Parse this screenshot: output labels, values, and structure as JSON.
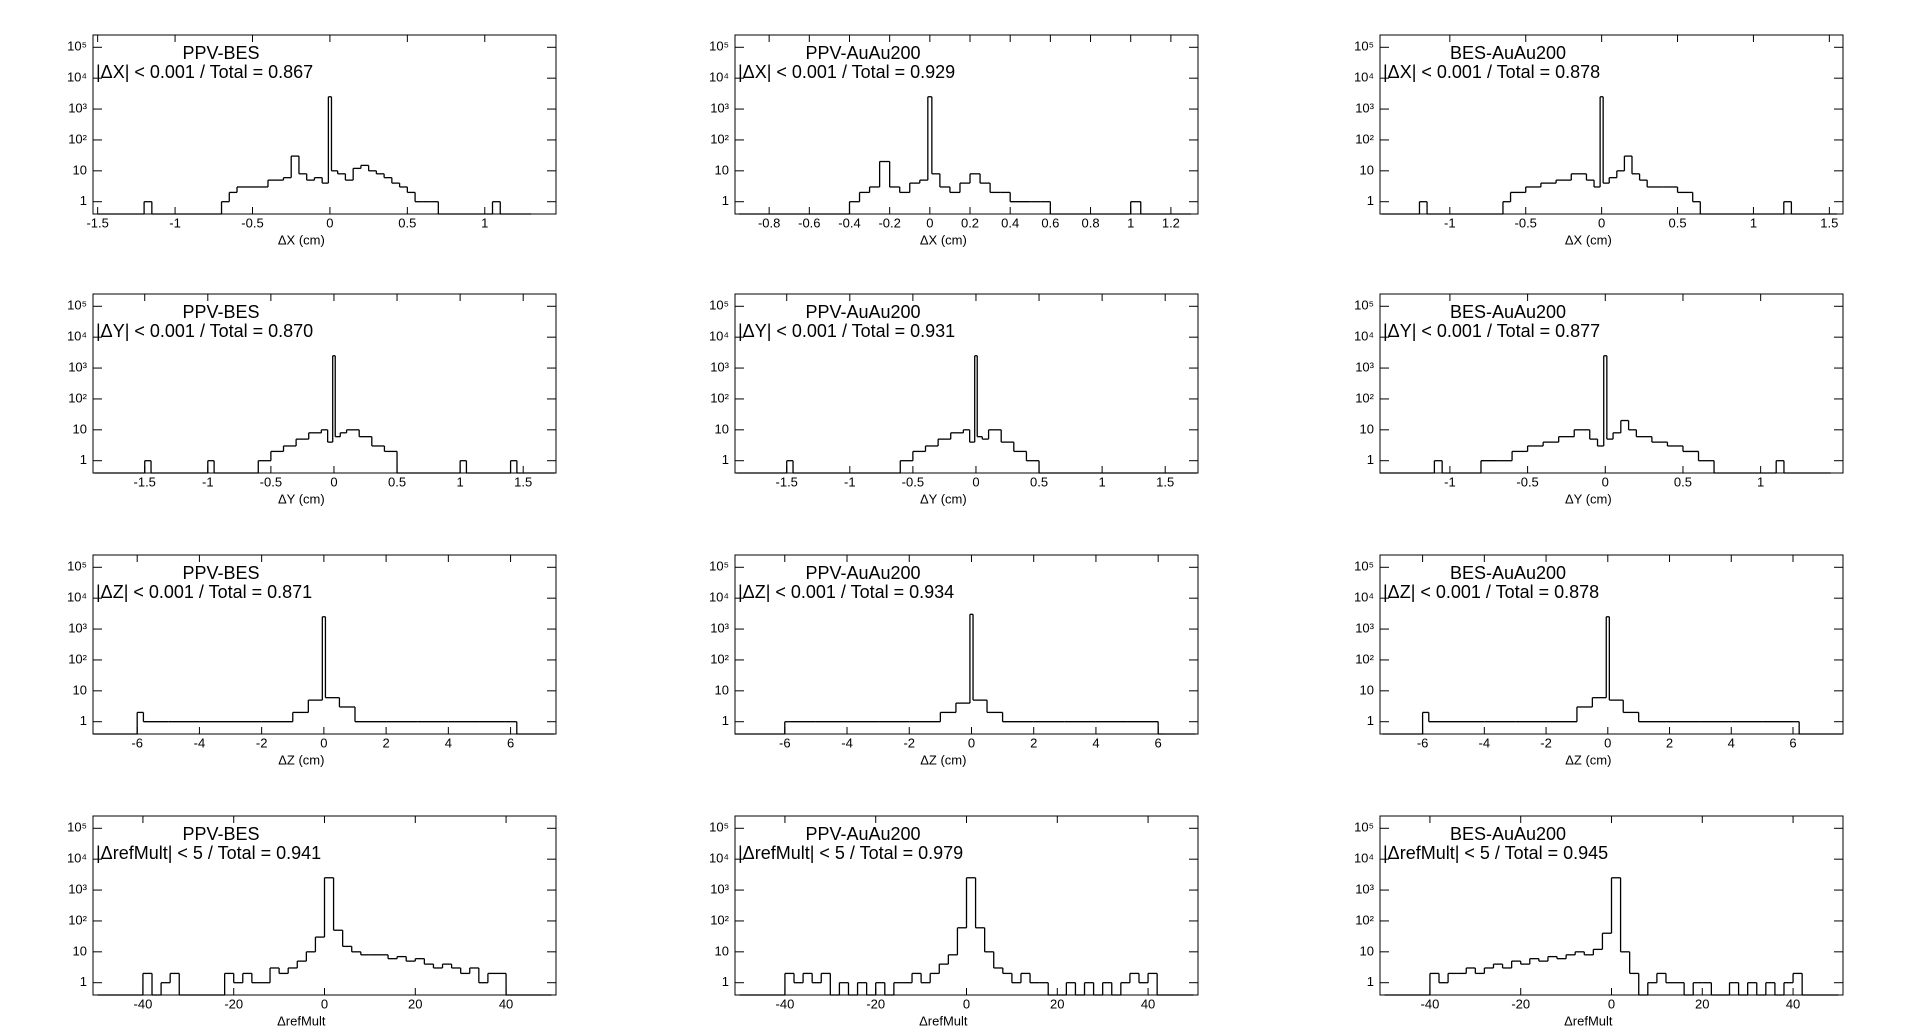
{
  "chart_data": [
    {
      "type": "histogram",
      "title": "PPV-BES",
      "annotation": "|ΔX| < 0.001 / Total = 0.867",
      "xlabel": "ΔX (cm)",
      "xlim": [
        -1.53,
        1.46
      ],
      "xticks": [
        -1.5,
        -1,
        -0.5,
        0,
        0.5,
        1
      ],
      "ylim": [
        0.4,
        250000
      ],
      "yticks": [
        1,
        10,
        {
          "value": 100,
          "label": "10²"
        },
        {
          "value": 1000,
          "label": "10³"
        },
        {
          "value": 10000,
          "label": "10⁴"
        },
        {
          "value": 100000,
          "label": "10⁵"
        }
      ],
      "log_y": true,
      "color": "#000000",
      "bins": [
        -1.5,
        -1.2,
        -1.15,
        -0.7,
        -0.65,
        -0.6,
        -0.5,
        -0.4,
        -0.3,
        -0.25,
        -0.2,
        -0.15,
        -0.1,
        -0.05,
        -0.01,
        0.01,
        0.05,
        0.1,
        0.15,
        0.2,
        0.25,
        0.3,
        0.35,
        0.4,
        0.45,
        0.5,
        0.55,
        0.6,
        0.65,
        0.7,
        1.05,
        1.1,
        1.3
      ],
      "counts": [
        0,
        1,
        0,
        1,
        2,
        3,
        3,
        5,
        6,
        30,
        8,
        5,
        6,
        4,
        2500,
        10,
        8,
        5,
        12,
        15,
        10,
        8,
        6,
        4,
        3,
        2,
        1,
        1,
        1,
        0,
        1,
        0
      ]
    },
    {
      "type": "histogram",
      "title": "PPV-AuAu200",
      "annotation": "|ΔX| < 0.001 / Total = 0.929",
      "xlabel": "ΔX (cm)",
      "xlim": [
        -0.97,
        1.335
      ],
      "xticks": [
        -0.8,
        -0.6,
        -0.4,
        -0.2,
        0,
        0.2,
        0.4,
        0.6,
        0.8,
        1,
        1.2
      ],
      "ylim": [
        0.4,
        250000
      ],
      "yticks": [
        1,
        10,
        {
          "value": 100,
          "label": "10²"
        },
        {
          "value": 1000,
          "label": "10³"
        },
        {
          "value": 10000,
          "label": "10⁴"
        },
        {
          "value": 100000,
          "label": "10⁵"
        }
      ],
      "log_y": true,
      "color": "#000000",
      "bins": [
        -0.95,
        -0.4,
        -0.35,
        -0.3,
        -0.25,
        -0.2,
        -0.15,
        -0.1,
        -0.05,
        -0.01,
        0.01,
        0.05,
        0.1,
        0.15,
        0.2,
        0.25,
        0.3,
        0.35,
        0.4,
        0.5,
        0.55,
        0.6,
        1.0,
        1.05,
        1.3
      ],
      "counts": [
        0,
        1,
        2,
        3,
        20,
        3,
        2,
        4,
        5,
        2500,
        8,
        3,
        2,
        4,
        8,
        4,
        2,
        2,
        1,
        1,
        1,
        0,
        1,
        0
      ]
    },
    {
      "type": "histogram",
      "title": "BES-AuAu200",
      "annotation": "|ΔX| < 0.001 / Total = 0.878",
      "xlabel": "ΔX (cm)",
      "xlim": [
        -1.46,
        1.59
      ],
      "xticks": [
        -1,
        -0.5,
        0,
        0.5,
        1,
        1.5
      ],
      "ylim": [
        0.4,
        250000
      ],
      "yticks": [
        1,
        10,
        {
          "value": 100,
          "label": "10²"
        },
        {
          "value": 1000,
          "label": "10³"
        },
        {
          "value": 10000,
          "label": "10⁴"
        },
        {
          "value": 100000,
          "label": "10⁵"
        }
      ],
      "log_y": true,
      "color": "#000000",
      "bins": [
        -1.45,
        -1.2,
        -1.15,
        -0.65,
        -0.6,
        -0.5,
        -0.4,
        -0.3,
        -0.2,
        -0.1,
        -0.05,
        -0.01,
        0.01,
        0.05,
        0.1,
        0.15,
        0.2,
        0.25,
        0.3,
        0.4,
        0.5,
        0.6,
        0.65,
        1.2,
        1.25,
        1.55
      ],
      "counts": [
        0,
        1,
        0,
        1,
        2,
        3,
        4,
        5,
        8,
        5,
        3,
        2500,
        4,
        6,
        10,
        30,
        8,
        5,
        3,
        3,
        2,
        1,
        0,
        1,
        0
      ]
    },
    {
      "type": "histogram",
      "title": "PPV-BES",
      "annotation": "|ΔY| < 0.001 / Total = 0.870",
      "xlabel": "ΔY (cm)",
      "xlim": [
        -1.91,
        1.76
      ],
      "xticks": [
        -1.5,
        -1,
        -0.5,
        0,
        0.5,
        1,
        1.5
      ],
      "ylim": [
        0.4,
        250000
      ],
      "yticks": [
        1,
        10,
        {
          "value": 100,
          "label": "10²"
        },
        {
          "value": 1000,
          "label": "10³"
        },
        {
          "value": 10000,
          "label": "10⁴"
        },
        {
          "value": 100000,
          "label": "10⁵"
        }
      ],
      "log_y": true,
      "color": "#000000",
      "bins": [
        -1.9,
        -1.5,
        -1.45,
        -1.0,
        -0.95,
        -0.6,
        -0.5,
        -0.4,
        -0.3,
        -0.2,
        -0.1,
        -0.05,
        -0.01,
        0.01,
        0.05,
        0.1,
        0.2,
        0.3,
        0.4,
        0.5,
        1.0,
        1.05,
        1.4,
        1.45,
        1.75
      ],
      "counts": [
        0,
        1,
        0,
        1,
        0,
        1,
        2,
        3,
        5,
        8,
        10,
        4,
        2500,
        6,
        8,
        10,
        6,
        3,
        2,
        0,
        1,
        0,
        1,
        0
      ]
    },
    {
      "type": "histogram",
      "title": "PPV-AuAu200",
      "annotation": "|ΔY| < 0.001 / Total = 0.931",
      "xlabel": "ΔY (cm)",
      "xlim": [
        -1.91,
        1.76
      ],
      "xticks": [
        -1.5,
        -1,
        -0.5,
        0,
        0.5,
        1,
        1.5
      ],
      "ylim": [
        0.4,
        250000
      ],
      "yticks": [
        1,
        10,
        {
          "value": 100,
          "label": "10²"
        },
        {
          "value": 1000,
          "label": "10³"
        },
        {
          "value": 10000,
          "label": "10⁴"
        },
        {
          "value": 100000,
          "label": "10⁵"
        }
      ],
      "log_y": true,
      "color": "#000000",
      "bins": [
        -1.9,
        -1.5,
        -1.45,
        -0.6,
        -0.5,
        -0.4,
        -0.3,
        -0.2,
        -0.1,
        -0.05,
        -0.01,
        0.01,
        0.05,
        0.1,
        0.2,
        0.3,
        0.4,
        0.5,
        1.75
      ],
      "counts": [
        0,
        1,
        0,
        1,
        2,
        3,
        5,
        8,
        10,
        4,
        2500,
        6,
        5,
        10,
        4,
        2,
        1,
        0
      ]
    },
    {
      "type": "histogram",
      "title": "BES-AuAu200",
      "annotation": "|ΔY| < 0.001 / Total = 0.877",
      "xlabel": "ΔY (cm)",
      "xlim": [
        -1.45,
        1.53
      ],
      "xticks": [
        -1,
        -0.5,
        0,
        0.5,
        1
      ],
      "ylim": [
        0.4,
        250000
      ],
      "yticks": [
        1,
        10,
        {
          "value": 100,
          "label": "10²"
        },
        {
          "value": 1000,
          "label": "10³"
        },
        {
          "value": 10000,
          "label": "10⁴"
        },
        {
          "value": 100000,
          "label": "10⁵"
        }
      ],
      "log_y": true,
      "color": "#000000",
      "bins": [
        -1.45,
        -1.1,
        -1.05,
        -0.8,
        -0.7,
        -0.6,
        -0.5,
        -0.4,
        -0.3,
        -0.2,
        -0.1,
        -0.05,
        -0.01,
        0.01,
        0.05,
        0.1,
        0.15,
        0.2,
        0.3,
        0.4,
        0.5,
        0.6,
        0.7,
        1.1,
        1.15,
        1.45
      ],
      "counts": [
        0,
        1,
        0,
        1,
        1,
        2,
        3,
        4,
        6,
        10,
        5,
        3,
        2500,
        5,
        8,
        20,
        10,
        6,
        4,
        3,
        2,
        1,
        0,
        1,
        0
      ]
    },
    {
      "type": "histogram",
      "title": "PPV-BES",
      "annotation": "|ΔZ| < 0.001 / Total = 0.871",
      "xlabel": "ΔZ (cm)",
      "xlim": [
        -7.42,
        7.46
      ],
      "xticks": [
        -6,
        -4,
        -2,
        0,
        2,
        4,
        6
      ],
      "ylim": [
        0.4,
        250000
      ],
      "yticks": [
        1,
        10,
        {
          "value": 100,
          "label": "10²"
        },
        {
          "value": 1000,
          "label": "10³"
        },
        {
          "value": 10000,
          "label": "10⁴"
        },
        {
          "value": 100000,
          "label": "10⁵"
        }
      ],
      "log_y": true,
      "color": "#000000",
      "bins": [
        -7.4,
        -6,
        -5.8,
        -5,
        -4,
        -3,
        -2,
        -1,
        -0.5,
        -0.05,
        0.05,
        0.5,
        1,
        2,
        3,
        4,
        5,
        6,
        6.2,
        7.4
      ],
      "counts": [
        0,
        2,
        1,
        1,
        1,
        1,
        1,
        2,
        5,
        2500,
        6,
        3,
        1,
        1,
        1,
        1,
        1,
        1,
        0
      ]
    },
    {
      "type": "histogram",
      "title": "PPV-AuAu200",
      "annotation": "|ΔZ| < 0.001 / Total = 0.934",
      "xlabel": "ΔZ (cm)",
      "xlim": [
        -7.6,
        7.28
      ],
      "xticks": [
        -6,
        -4,
        -2,
        0,
        2,
        4,
        6
      ],
      "ylim": [
        0.4,
        250000
      ],
      "yticks": [
        1,
        10,
        {
          "value": 100,
          "label": "10²"
        },
        {
          "value": 1000,
          "label": "10³"
        },
        {
          "value": 10000,
          "label": "10⁴"
        },
        {
          "value": 100000,
          "label": "10⁵"
        }
      ],
      "log_y": true,
      "color": "#000000",
      "bins": [
        -7.6,
        -6,
        -5.8,
        -5,
        -4,
        -3,
        -2,
        -1,
        -0.5,
        -0.05,
        0.05,
        0.5,
        1,
        2,
        3,
        4,
        5,
        6,
        6.2,
        7.2
      ],
      "counts": [
        0,
        1,
        1,
        1,
        1,
        1,
        1,
        2,
        4,
        3000,
        5,
        2,
        1,
        1,
        1,
        1,
        1,
        0,
        0
      ]
    },
    {
      "type": "histogram",
      "title": "BES-AuAu200",
      "annotation": "|ΔZ| < 0.001 / Total = 0.878",
      "xlabel": "ΔZ (cm)",
      "xlim": [
        -7.38,
        7.62
      ],
      "xticks": [
        -6,
        -4,
        -2,
        0,
        2,
        4,
        6
      ],
      "ylim": [
        0.4,
        250000
      ],
      "yticks": [
        1,
        10,
        {
          "value": 100,
          "label": "10²"
        },
        {
          "value": 1000,
          "label": "10³"
        },
        {
          "value": 10000,
          "label": "10⁴"
        },
        {
          "value": 100000,
          "label": "10⁵"
        }
      ],
      "log_y": true,
      "color": "#000000",
      "bins": [
        -7.3,
        -6,
        -5.8,
        -5,
        -4,
        -3,
        -2,
        -1,
        -0.5,
        -0.05,
        0.05,
        0.5,
        1,
        2,
        3,
        4,
        5,
        6,
        6.2,
        7.6
      ],
      "counts": [
        0,
        2,
        1,
        1,
        1,
        1,
        1,
        3,
        6,
        2500,
        5,
        2,
        1,
        1,
        1,
        1,
        1,
        1,
        0
      ]
    },
    {
      "type": "histogram",
      "title": "PPV-BES",
      "annotation": "|ΔrefMult| < 5 / Total = 0.941",
      "xlabel": "ΔrefMult",
      "xlim": [
        -51,
        51
      ],
      "xticks": [
        -40,
        -20,
        0,
        20,
        40
      ],
      "ylim": [
        0.4,
        250000
      ],
      "yticks": [
        1,
        10,
        {
          "value": 100,
          "label": "10²"
        },
        {
          "value": 1000,
          "label": "10³"
        },
        {
          "value": 10000,
          "label": "10⁴"
        },
        {
          "value": 100000,
          "label": "10⁵"
        }
      ],
      "log_y": true,
      "color": "#000000",
      "bins": [
        -50,
        -48,
        -46,
        -44,
        -42,
        -40,
        -38,
        -36,
        -34,
        -32,
        -30,
        -28,
        -26,
        -24,
        -22,
        -20,
        -18,
        -16,
        -14,
        -12,
        -10,
        -8,
        -6,
        -4,
        -2,
        0,
        2,
        4,
        6,
        8,
        10,
        12,
        14,
        16,
        18,
        20,
        22,
        24,
        26,
        28,
        30,
        32,
        34,
        36,
        38,
        40,
        42,
        44,
        46,
        48,
        50
      ],
      "counts": [
        0,
        0,
        0,
        0,
        0,
        2,
        0,
        1,
        2,
        0,
        0,
        0,
        0,
        0,
        2,
        1,
        2,
        1,
        1,
        3,
        2,
        3,
        5,
        10,
        30,
        2500,
        50,
        15,
        10,
        8,
        8,
        8,
        6,
        7,
        5,
        6,
        4,
        3,
        4,
        3,
        2,
        3,
        1,
        2,
        2,
        0,
        0,
        0,
        0,
        0
      ]
    },
    {
      "type": "histogram",
      "title": "PPV-AuAu200",
      "annotation": "|ΔrefMult| < 5 / Total = 0.979",
      "xlabel": "ΔrefMult",
      "xlim": [
        -51,
        51
      ],
      "xticks": [
        -40,
        -20,
        0,
        20,
        40
      ],
      "ylim": [
        0.4,
        250000
      ],
      "yticks": [
        1,
        10,
        {
          "value": 100,
          "label": "10²"
        },
        {
          "value": 1000,
          "label": "10³"
        },
        {
          "value": 10000,
          "label": "10⁴"
        },
        {
          "value": 100000,
          "label": "10⁵"
        }
      ],
      "log_y": true,
      "color": "#000000",
      "bins": [
        -50,
        -48,
        -46,
        -44,
        -42,
        -40,
        -38,
        -36,
        -34,
        -32,
        -30,
        -28,
        -26,
        -24,
        -22,
        -20,
        -18,
        -16,
        -14,
        -12,
        -10,
        -8,
        -6,
        -4,
        -2,
        0,
        2,
        4,
        6,
        8,
        10,
        12,
        14,
        16,
        18,
        20,
        22,
        24,
        26,
        28,
        30,
        32,
        34,
        36,
        38,
        40,
        42,
        44,
        46,
        48,
        50
      ],
      "counts": [
        0,
        0,
        0,
        0,
        0,
        2,
        1,
        2,
        1,
        2,
        0,
        1,
        0,
        1,
        0,
        1,
        0,
        1,
        1,
        2,
        1,
        2,
        4,
        8,
        60,
        2500,
        60,
        10,
        3,
        2,
        1,
        2,
        1,
        1,
        0,
        0,
        1,
        0,
        1,
        0,
        1,
        0,
        1,
        2,
        1,
        2,
        0,
        0,
        0,
        0
      ]
    },
    {
      "type": "histogram",
      "title": "BES-AuAu200",
      "annotation": "|ΔrefMult| < 5 / Total = 0.945",
      "xlabel": "ΔrefMult",
      "xlim": [
        -51,
        51
      ],
      "xticks": [
        -40,
        -20,
        0,
        20,
        40
      ],
      "ylim": [
        0.4,
        250000
      ],
      "yticks": [
        1,
        10,
        {
          "value": 100,
          "label": "10²"
        },
        {
          "value": 1000,
          "label": "10³"
        },
        {
          "value": 10000,
          "label": "10⁴"
        },
        {
          "value": 100000,
          "label": "10⁵"
        }
      ],
      "log_y": true,
      "color": "#000000",
      "bins": [
        -50,
        -48,
        -46,
        -44,
        -42,
        -40,
        -38,
        -36,
        -34,
        -32,
        -30,
        -28,
        -26,
        -24,
        -22,
        -20,
        -18,
        -16,
        -14,
        -12,
        -10,
        -8,
        -6,
        -4,
        -2,
        0,
        2,
        4,
        6,
        8,
        10,
        12,
        14,
        16,
        18,
        20,
        22,
        24,
        26,
        28,
        30,
        32,
        34,
        36,
        38,
        40,
        42,
        44,
        46,
        48,
        50
      ],
      "counts": [
        0,
        0,
        0,
        0,
        0,
        2,
        1,
        2,
        2,
        3,
        2,
        3,
        4,
        3,
        5,
        4,
        6,
        5,
        7,
        6,
        8,
        10,
        8,
        12,
        40,
        2500,
        10,
        2,
        0,
        1,
        2,
        1,
        1,
        0,
        1,
        1,
        0,
        0,
        1,
        0,
        1,
        0,
        1,
        0,
        1,
        2,
        0,
        0,
        0,
        0
      ]
    }
  ]
}
